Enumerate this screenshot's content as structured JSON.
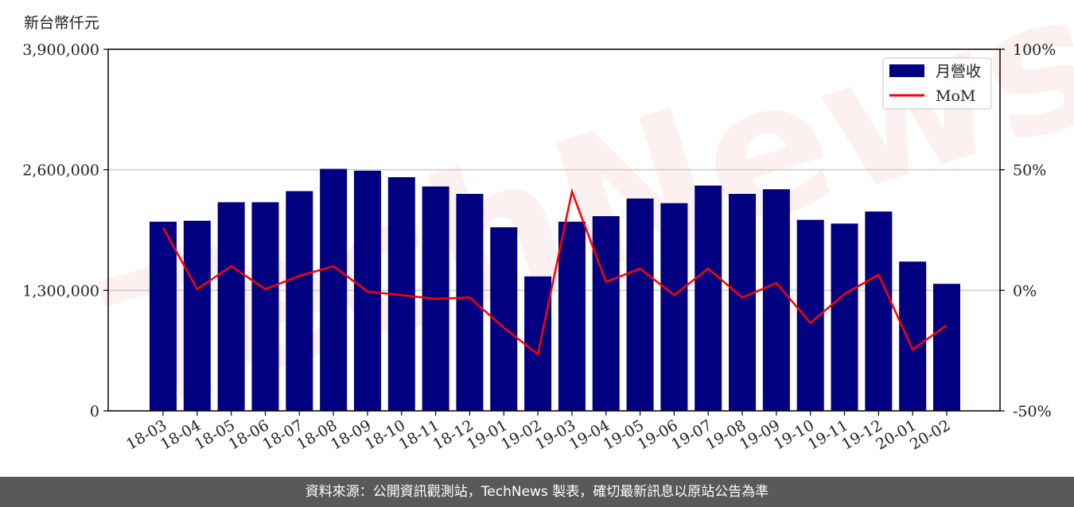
{
  "unit_label": "新台幣仟元",
  "watermark": "TechNews",
  "footer": "資料來源：公開資訊觀測站，TechNews 製表，確切最新訊息以原站公告為準",
  "colors": {
    "bar": "#000080",
    "line": "#ff0000",
    "grid": "#cccccc"
  },
  "chart_data": {
    "type": "bar",
    "categories": [
      "18-03",
      "18-04",
      "18-05",
      "18-06",
      "18-07",
      "18-08",
      "18-09",
      "18-10",
      "18-11",
      "18-12",
      "19-01",
      "19-02",
      "19-03",
      "19-04",
      "19-05",
      "19-06",
      "19-07",
      "19-08",
      "19-09",
      "19-10",
      "19-11",
      "19-12",
      "20-01",
      "20-02"
    ],
    "series": [
      {
        "name": "月營收",
        "type": "bar",
        "axis": "left",
        "values": [
          2040000,
          2050000,
          2250000,
          2250000,
          2370000,
          2610000,
          2590000,
          2520000,
          2420000,
          2340000,
          1980000,
          1450000,
          2040000,
          2100000,
          2290000,
          2240000,
          2430000,
          2340000,
          2390000,
          2060000,
          2020000,
          2150000,
          1610000,
          1370000
        ]
      },
      {
        "name": "MoM",
        "type": "line",
        "axis": "right",
        "values": [
          26,
          0.5,
          10,
          0.5,
          6,
          10,
          -0.5,
          -2,
          -3.5,
          -3,
          -15.5,
          -26.5,
          41,
          3.5,
          9,
          -2,
          9,
          -3,
          3,
          -13.5,
          -1.5,
          6.5,
          -24.5,
          -14.5
        ]
      }
    ],
    "y_left": {
      "ylim": [
        0,
        3900000
      ],
      "ticks": [
        0,
        1300000,
        2600000,
        3900000
      ],
      "tick_labels": [
        "0",
        "1,300,000",
        "2,600,000",
        "3,900,000"
      ]
    },
    "y_right": {
      "ylim": [
        -50,
        100
      ],
      "ticks": [
        -50,
        0,
        50,
        100
      ],
      "tick_labels": [
        "-50%",
        "0%",
        "50%",
        "100%"
      ]
    },
    "grid": true,
    "legend": "top-right"
  }
}
